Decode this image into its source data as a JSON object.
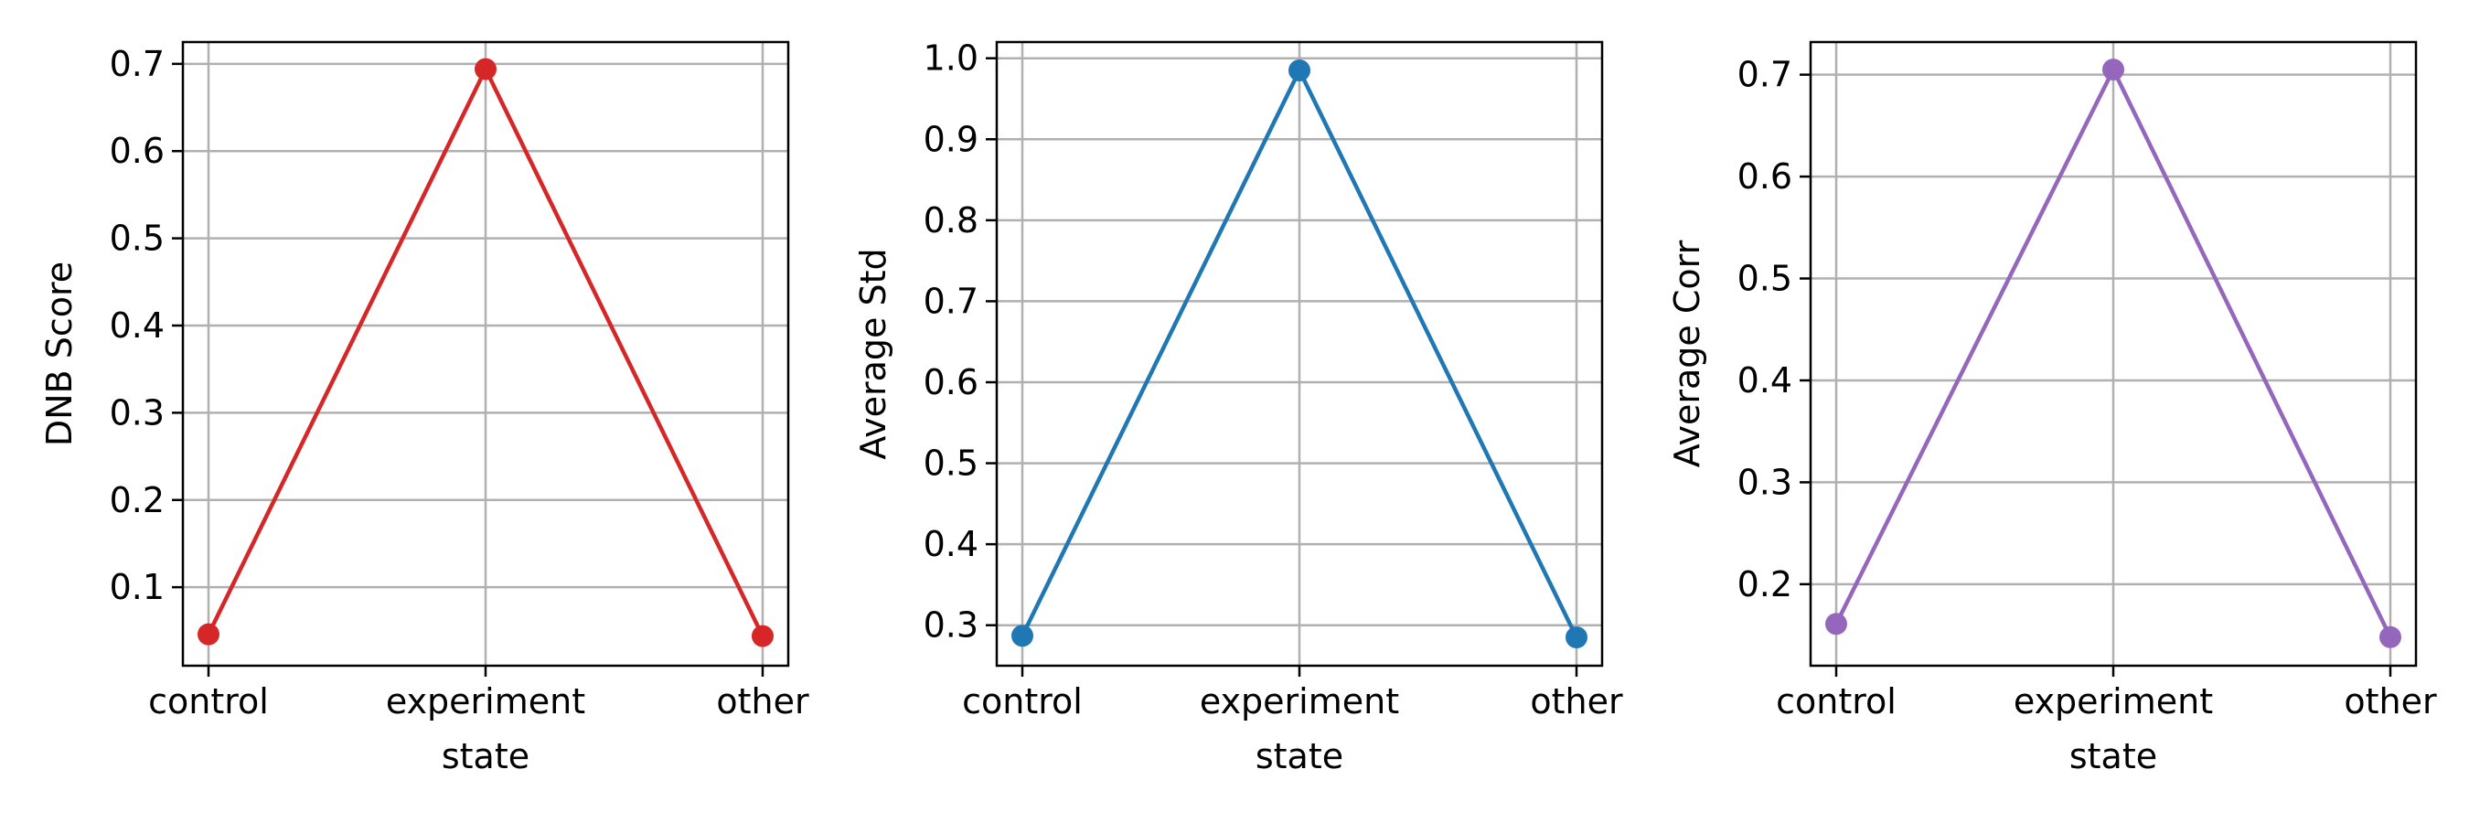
{
  "chart_data": [
    {
      "type": "line",
      "categories": [
        "control",
        "experiment",
        "other"
      ],
      "series": [
        {
          "values": [
            0.046,
            0.694,
            0.044
          ],
          "color": "#d62728"
        }
      ],
      "xlabel": "state",
      "ylabel": "DNB Score",
      "ylim": [
        0.01,
        0.725
      ],
      "yticks": [
        0.1,
        0.2,
        0.3,
        0.4,
        0.5,
        0.6,
        0.7
      ],
      "grid": true
    },
    {
      "type": "line",
      "categories": [
        "control",
        "experiment",
        "other"
      ],
      "series": [
        {
          "values": [
            0.287,
            0.985,
            0.285
          ],
          "color": "#1f77b4"
        }
      ],
      "xlabel": "state",
      "ylabel": "Average Std",
      "ylim": [
        0.25,
        1.02
      ],
      "yticks": [
        0.3,
        0.4,
        0.5,
        0.6,
        0.7,
        0.8,
        0.9,
        1.0
      ],
      "grid": true
    },
    {
      "type": "line",
      "categories": [
        "control",
        "experiment",
        "other"
      ],
      "series": [
        {
          "values": [
            0.161,
            0.705,
            0.148
          ],
          "color": "#9467bd"
        }
      ],
      "xlabel": "state",
      "ylabel": "Average Corr",
      "ylim": [
        0.12,
        0.732
      ],
      "yticks": [
        0.2,
        0.3,
        0.4,
        0.5,
        0.6,
        0.7
      ],
      "grid": true
    }
  ]
}
